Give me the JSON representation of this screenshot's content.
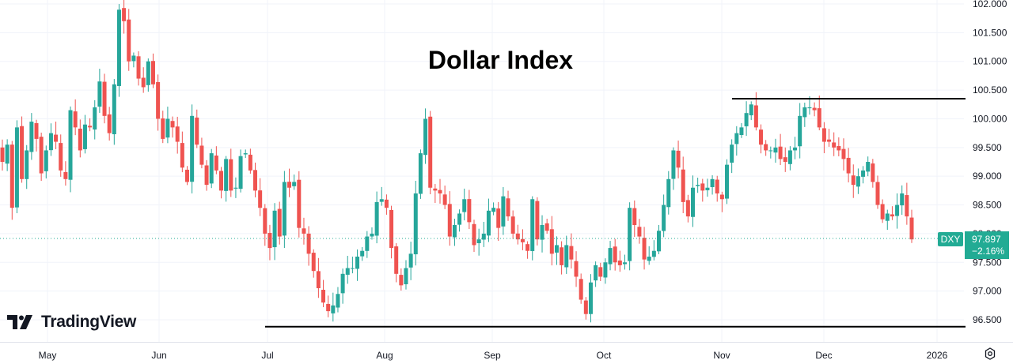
{
  "chart_data": {
    "type": "candlestick",
    "title": "Dollar Index",
    "symbol": "DXY",
    "last_price": "97.897",
    "change_pct": "−2.16%",
    "ylim": [
      96.25,
      102.05
    ],
    "y_ticks": [
      "102.000",
      "101.500",
      "101.000",
      "100.500",
      "100.000",
      "99.500",
      "99.000",
      "98.500",
      "98.000",
      "97.500",
      "97.000",
      "96.500"
    ],
    "x_ticks": [
      "May",
      "Jun",
      "Jul",
      "Aug",
      "Sep",
      "Oct",
      "Nov",
      "Dec",
      "2026"
    ],
    "grid": true,
    "colors": {
      "up": "#26a69a",
      "down": "#ef5350",
      "trendline": "#000000",
      "grid": "#f0f3fa",
      "tag": "#22ab94"
    },
    "trendlines": [
      {
        "name": "resistance",
        "x_start": "2025-10-31",
        "x_end": "2026-01-02",
        "y": 100.35
      },
      {
        "name": "support",
        "x_start": "2025-06-30",
        "x_end": "2026-01-02",
        "y": 96.38
      }
    ],
    "ohlc_close_path": [
      99.25,
      99.55,
      98.45,
      99.85,
      98.95,
      99.45,
      99.95,
      99.65,
      99.05,
      99.45,
      99.75,
      99.6,
      99.1,
      98.95,
      100.15,
      99.85,
      99.45,
      99.9,
      99.85,
      100.2,
      100.65,
      100.05,
      99.75,
      100.6,
      101.9,
      101.7,
      101.0,
      101.1,
      100.7,
      100.55,
      101.0,
      100.6,
      100.0,
      99.65,
      100.0,
      99.85,
      99.6,
      99.15,
      98.9,
      100.05,
      99.55,
      99.2,
      98.85,
      99.4,
      99.1,
      98.75,
      99.3,
      98.75,
      98.8,
      99.35,
      99.4,
      99.1,
      98.75,
      98.45,
      98.0,
      97.75,
      98.4,
      97.95,
      98.9,
      98.8,
      98.9,
      98.1,
      98.0,
      97.65,
      97.35,
      97.05,
      96.8,
      96.65,
      96.75,
      96.95,
      97.3,
      97.4,
      97.4,
      97.6,
      97.7,
      97.95,
      98.0,
      98.55,
      98.6,
      98.45,
      97.75,
      97.3,
      97.1,
      97.4,
      97.65,
      98.7,
      99.4,
      100.0,
      98.8,
      98.75,
      98.7,
      98.5,
      97.95,
      98.15,
      98.35,
      98.6,
      98.2,
      97.8,
      97.9,
      98.0,
      98.4,
      98.45,
      98.1,
      98.65,
      98.3,
      98.0,
      97.9,
      97.85,
      97.7,
      98.6,
      97.9,
      98.15,
      98.05,
      97.65,
      97.8,
      97.45,
      97.8,
      97.55,
      97.25,
      96.85,
      96.6,
      97.15,
      97.45,
      97.25,
      97.5,
      97.75,
      97.5,
      97.45,
      97.5,
      98.45,
      98.15,
      97.95,
      97.55,
      97.6,
      97.7,
      98.05,
      98.5,
      98.95,
      99.45,
      99.15,
      98.55,
      98.3,
      98.8,
      98.85,
      98.75,
      98.8,
      98.95,
      98.7,
      98.6,
      99.2,
      99.55,
      99.75,
      99.85,
      100.1,
      100.25,
      99.85,
      99.55,
      99.45,
      99.45,
      99.5,
      99.3,
      99.25,
      99.45,
      99.5,
      100.05,
      100.2,
      100.2,
      100.15,
      99.85,
      99.6,
      99.6,
      99.5,
      99.45,
      99.3,
      99.05,
      98.85,
      99.0,
      99.1,
      99.25,
      98.9,
      98.5,
      98.25,
      98.35,
      98.3,
      98.5,
      98.7,
      98.3,
      97.9
    ]
  },
  "logo": {
    "text": "TradingView"
  },
  "controls": {
    "settings_icon": "gear-icon"
  }
}
